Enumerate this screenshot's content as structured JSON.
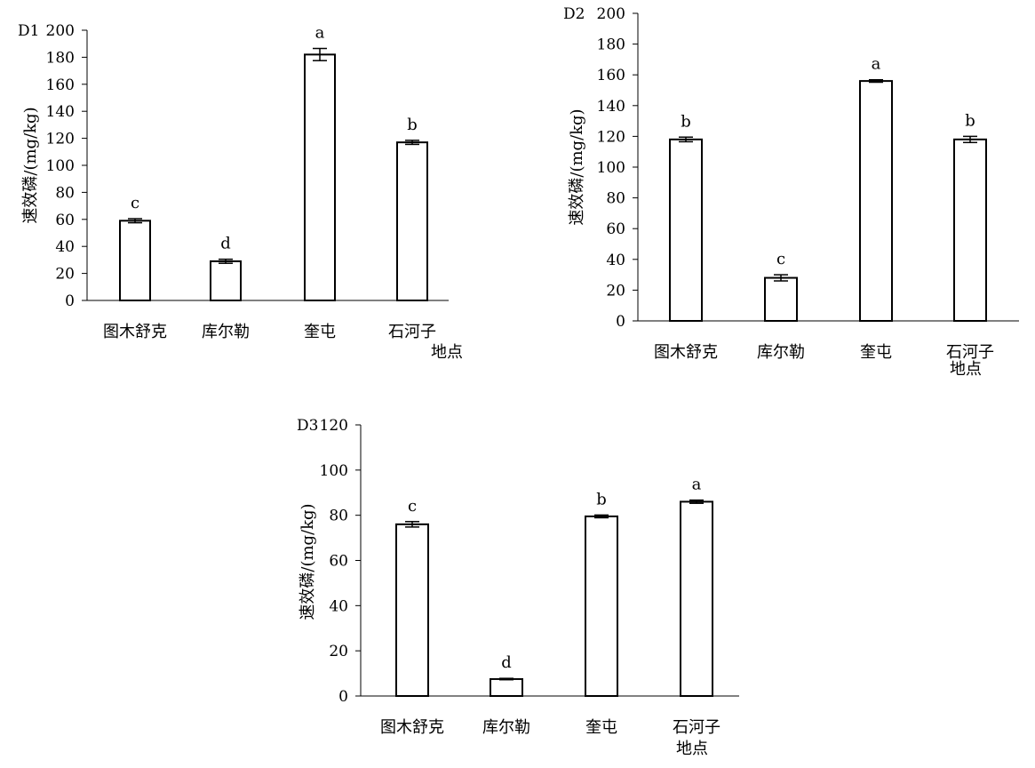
{
  "chart_data": [
    {
      "type": "bar",
      "panel": "D1",
      "categories": [
        "图木舒克",
        "库尔勒",
        "奎屯",
        "石河子"
      ],
      "values": [
        59,
        29,
        182,
        117
      ],
      "errors": [
        1.5,
        1.5,
        4.5,
        1.5
      ],
      "significance": [
        "c",
        "d",
        "a",
        "b"
      ],
      "xlabel": "地点",
      "ylabel": "速效磷/(mg/kg)",
      "ylim": [
        0,
        200
      ],
      "yticks": [
        0,
        20,
        40,
        60,
        80,
        100,
        120,
        140,
        160,
        180,
        200
      ],
      "grid": false
    },
    {
      "type": "bar",
      "panel": "D2",
      "categories": [
        "图木舒克",
        "库尔勒",
        "奎屯",
        "石河子"
      ],
      "values": [
        118,
        28,
        156,
        118
      ],
      "errors": [
        1.5,
        2,
        0.8,
        2
      ],
      "significance": [
        "b",
        "c",
        "a",
        "b"
      ],
      "xlabel": "地点",
      "ylabel": "速效磷/(mg/kg)",
      "ylim": [
        0,
        200
      ],
      "yticks": [
        0,
        20,
        40,
        60,
        80,
        100,
        120,
        140,
        160,
        180,
        200
      ],
      "grid": false
    },
    {
      "type": "bar",
      "panel": "D3",
      "categories": [
        "图木舒克",
        "库尔勒",
        "奎屯",
        "石河子"
      ],
      "values": [
        76,
        7.5,
        79.5,
        86
      ],
      "errors": [
        1.2,
        0.3,
        0.6,
        0.7
      ],
      "significance": [
        "c",
        "d",
        "b",
        "a"
      ],
      "xlabel": "地点",
      "ylabel": "速效磷/(mg/kg)",
      "ylim": [
        0,
        120
      ],
      "yticks": [
        0,
        20,
        40,
        60,
        80,
        100,
        120
      ],
      "grid": false
    }
  ]
}
